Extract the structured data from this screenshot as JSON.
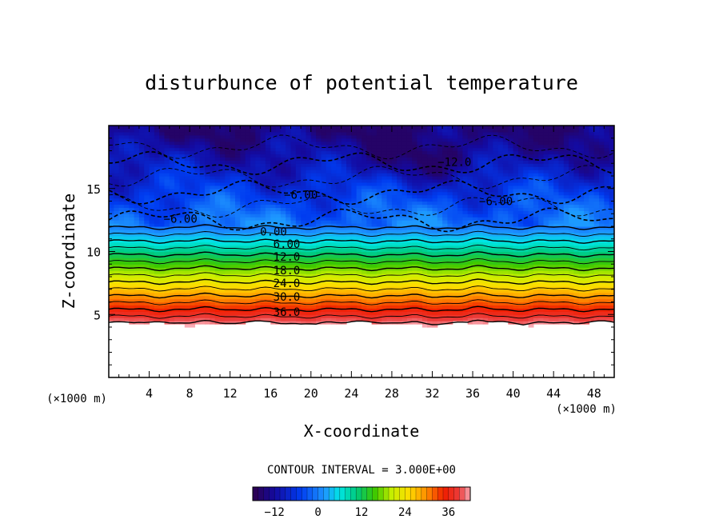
{
  "chart_data": {
    "type": "contour",
    "title": "disturbunce of potential temperature",
    "xlabel": "X-coordinate",
    "ylabel": "Z-coordinate",
    "x_unit_label": "(×1000 m)",
    "y_unit_label": "(×1000 m)",
    "xlim": [
      0,
      50
    ],
    "ylim": [
      0,
      20
    ],
    "x_ticks": [
      4,
      8,
      12,
      16,
      20,
      24,
      28,
      32,
      36,
      40,
      44,
      48
    ],
    "x_tick_labels": [
      "4",
      "8",
      "12",
      "16",
      "20",
      "24",
      "28",
      "32",
      "36",
      "40",
      "44",
      "48"
    ],
    "y_ticks": [
      5,
      10,
      15
    ],
    "y_tick_labels": [
      "5",
      "10",
      "15"
    ],
    "contour_interval_text": "CONTOUR INTERVAL = 3.000E+00",
    "contour_interval": 3.0,
    "value_range": [
      -18,
      42
    ],
    "colorbar": {
      "ticks": [
        -12,
        0,
        12,
        24,
        36
      ],
      "tick_labels": [
        "−12",
        "0",
        "12",
        "24",
        "36"
      ]
    },
    "terrain_top_z": 4.3,
    "stable_layer_z_range": [
      4.3,
      11.9
    ],
    "stable_layer_value_range": [
      41,
      0
    ],
    "upper_layer_value_range": [
      0,
      -15
    ],
    "contour_labels": [
      {
        "text": "−12.0",
        "x": 34.2,
        "z": 17.1
      },
      {
        "text": "−6.00",
        "x": 19.0,
        "z": 14.5
      },
      {
        "text": "−6.00",
        "x": 38.3,
        "z": 14.0
      },
      {
        "text": "−6.00",
        "x": 7.1,
        "z": 12.6
      },
      {
        "text": "0.00",
        "x": 16.3,
        "z": 11.6
      },
      {
        "text": "6.00",
        "x": 17.6,
        "z": 10.6
      },
      {
        "text": "12.0",
        "x": 17.6,
        "z": 9.6
      },
      {
        "text": "18.0",
        "x": 17.6,
        "z": 8.5
      },
      {
        "text": "24.0",
        "x": 17.6,
        "z": 7.5
      },
      {
        "text": "30.0",
        "x": 17.6,
        "z": 6.4
      },
      {
        "text": "36.0",
        "x": 17.6,
        "z": 5.2
      }
    ]
  }
}
